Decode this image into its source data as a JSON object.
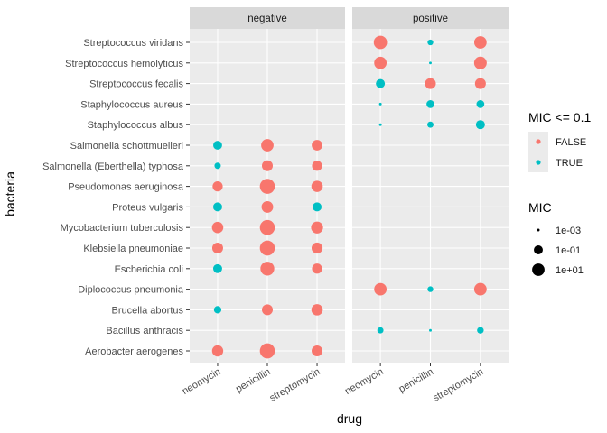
{
  "chart_data": {
    "type": "scatter",
    "xlabel": "drug",
    "ylabel": "bacteria",
    "facets": [
      "negative",
      "positive"
    ],
    "drugs": [
      "neomycin",
      "penicillin",
      "streptomycin"
    ],
    "bacteria": [
      "Aerobacter aerogenes",
      "Bacillus anthracis",
      "Brucella abortus",
      "Diplococcus pneumonia",
      "Escherichia coli",
      "Klebsiella pneumoniae",
      "Mycobacterium tuberculosis",
      "Proteus vulgaris",
      "Pseudomonas aeruginosa",
      "Salmonella (Eberthella) typhosa",
      "Salmonella schottmuelleri",
      "Staphylococcus albus",
      "Staphylococcus aureus",
      "Streptococcus fecalis",
      "Streptococcus hemolyticus",
      "Streptococcus viridans"
    ],
    "points": [
      {
        "bacteria": "Aerobacter aerogenes",
        "gram": "negative",
        "drug": "neomycin",
        "mic": 1.6,
        "mic_le_0_1": false
      },
      {
        "bacteria": "Aerobacter aerogenes",
        "gram": "negative",
        "drug": "penicillin",
        "mic": 870,
        "mic_le_0_1": false
      },
      {
        "bacteria": "Aerobacter aerogenes",
        "gram": "negative",
        "drug": "streptomycin",
        "mic": 1,
        "mic_le_0_1": false
      },
      {
        "bacteria": "Brucella abortus",
        "gram": "negative",
        "drug": "neomycin",
        "mic": 0.02,
        "mic_le_0_1": true
      },
      {
        "bacteria": "Brucella abortus",
        "gram": "negative",
        "drug": "penicillin",
        "mic": 1,
        "mic_le_0_1": false
      },
      {
        "bacteria": "Brucella abortus",
        "gram": "negative",
        "drug": "streptomycin",
        "mic": 2,
        "mic_le_0_1": false
      },
      {
        "bacteria": "Escherichia coli",
        "gram": "negative",
        "drug": "neomycin",
        "mic": 0.1,
        "mic_le_0_1": true
      },
      {
        "bacteria": "Escherichia coli",
        "gram": "negative",
        "drug": "penicillin",
        "mic": 100,
        "mic_le_0_1": false
      },
      {
        "bacteria": "Escherichia coli",
        "gram": "negative",
        "drug": "streptomycin",
        "mic": 0.4,
        "mic_le_0_1": false
      },
      {
        "bacteria": "Klebsiella pneumoniae",
        "gram": "negative",
        "drug": "neomycin",
        "mic": 1,
        "mic_le_0_1": false
      },
      {
        "bacteria": "Klebsiella pneumoniae",
        "gram": "negative",
        "drug": "penicillin",
        "mic": 850,
        "mic_le_0_1": false
      },
      {
        "bacteria": "Klebsiella pneumoniae",
        "gram": "negative",
        "drug": "streptomycin",
        "mic": 1.2,
        "mic_le_0_1": false
      },
      {
        "bacteria": "Mycobacterium tuberculosis",
        "gram": "negative",
        "drug": "neomycin",
        "mic": 2,
        "mic_le_0_1": false
      },
      {
        "bacteria": "Mycobacterium tuberculosis",
        "gram": "negative",
        "drug": "penicillin",
        "mic": 800,
        "mic_le_0_1": false
      },
      {
        "bacteria": "Mycobacterium tuberculosis",
        "gram": "negative",
        "drug": "streptomycin",
        "mic": 5,
        "mic_le_0_1": false
      },
      {
        "bacteria": "Proteus vulgaris",
        "gram": "negative",
        "drug": "neomycin",
        "mic": 0.1,
        "mic_le_0_1": true
      },
      {
        "bacteria": "Proteus vulgaris",
        "gram": "negative",
        "drug": "penicillin",
        "mic": 3,
        "mic_le_0_1": false
      },
      {
        "bacteria": "Proteus vulgaris",
        "gram": "negative",
        "drug": "streptomycin",
        "mic": 0.1,
        "mic_le_0_1": true
      },
      {
        "bacteria": "Pseudomonas aeruginosa",
        "gram": "negative",
        "drug": "neomycin",
        "mic": 0.4,
        "mic_le_0_1": false
      },
      {
        "bacteria": "Pseudomonas aeruginosa",
        "gram": "negative",
        "drug": "penicillin",
        "mic": 850,
        "mic_le_0_1": false
      },
      {
        "bacteria": "Pseudomonas aeruginosa",
        "gram": "negative",
        "drug": "streptomycin",
        "mic": 2,
        "mic_le_0_1": false
      },
      {
        "bacteria": "Salmonella (Eberthella) typhosa",
        "gram": "negative",
        "drug": "neomycin",
        "mic": 0.008,
        "mic_le_0_1": true
      },
      {
        "bacteria": "Salmonella (Eberthella) typhosa",
        "gram": "negative",
        "drug": "penicillin",
        "mic": 1,
        "mic_le_0_1": false
      },
      {
        "bacteria": "Salmonella (Eberthella) typhosa",
        "gram": "negative",
        "drug": "streptomycin",
        "mic": 0.4,
        "mic_le_0_1": false
      },
      {
        "bacteria": "Salmonella schottmuelleri",
        "gram": "negative",
        "drug": "neomycin",
        "mic": 0.09,
        "mic_le_0_1": true
      },
      {
        "bacteria": "Salmonella schottmuelleri",
        "gram": "negative",
        "drug": "penicillin",
        "mic": 10,
        "mic_le_0_1": false
      },
      {
        "bacteria": "Salmonella schottmuelleri",
        "gram": "negative",
        "drug": "streptomycin",
        "mic": 0.8,
        "mic_le_0_1": false
      },
      {
        "bacteria": "Bacillus anthracis",
        "gram": "positive",
        "drug": "neomycin",
        "mic": 0.007,
        "mic_le_0_1": true
      },
      {
        "bacteria": "Bacillus anthracis",
        "gram": "positive",
        "drug": "penicillin",
        "mic": 0.001,
        "mic_le_0_1": true
      },
      {
        "bacteria": "Bacillus anthracis",
        "gram": "positive",
        "drug": "streptomycin",
        "mic": 0.01,
        "mic_le_0_1": true
      },
      {
        "bacteria": "Diplococcus pneumonia",
        "gram": "positive",
        "drug": "neomycin",
        "mic": 10,
        "mic_le_0_1": false
      },
      {
        "bacteria": "Diplococcus pneumonia",
        "gram": "positive",
        "drug": "penicillin",
        "mic": 0.005,
        "mic_le_0_1": true
      },
      {
        "bacteria": "Diplococcus pneumonia",
        "gram": "positive",
        "drug": "streptomycin",
        "mic": 11,
        "mic_le_0_1": false
      },
      {
        "bacteria": "Staphylococcus albus",
        "gram": "positive",
        "drug": "neomycin",
        "mic": 0.001,
        "mic_le_0_1": true
      },
      {
        "bacteria": "Staphylococcus albus",
        "gram": "positive",
        "drug": "penicillin",
        "mic": 0.007,
        "mic_le_0_1": true
      },
      {
        "bacteria": "Staphylococcus albus",
        "gram": "positive",
        "drug": "streptomycin",
        "mic": 0.1,
        "mic_le_0_1": true
      },
      {
        "bacteria": "Staphylococcus aureus",
        "gram": "positive",
        "drug": "neomycin",
        "mic": 0.001,
        "mic_le_0_1": true
      },
      {
        "bacteria": "Staphylococcus aureus",
        "gram": "positive",
        "drug": "penicillin",
        "mic": 0.03,
        "mic_le_0_1": true
      },
      {
        "bacteria": "Staphylococcus aureus",
        "gram": "positive",
        "drug": "streptomycin",
        "mic": 0.03,
        "mic_le_0_1": true
      },
      {
        "bacteria": "Streptococcus fecalis",
        "gram": "positive",
        "drug": "neomycin",
        "mic": 0.1,
        "mic_le_0_1": true
      },
      {
        "bacteria": "Streptococcus fecalis",
        "gram": "positive",
        "drug": "penicillin",
        "mic": 1,
        "mic_le_0_1": false
      },
      {
        "bacteria": "Streptococcus fecalis",
        "gram": "positive",
        "drug": "streptomycin",
        "mic": 1,
        "mic_le_0_1": false
      },
      {
        "bacteria": "Streptococcus hemolyticus",
        "gram": "positive",
        "drug": "neomycin",
        "mic": 10,
        "mic_le_0_1": false
      },
      {
        "bacteria": "Streptococcus hemolyticus",
        "gram": "positive",
        "drug": "penicillin",
        "mic": 0.001,
        "mic_le_0_1": true
      },
      {
        "bacteria": "Streptococcus hemolyticus",
        "gram": "positive",
        "drug": "streptomycin",
        "mic": 14,
        "mic_le_0_1": false
      },
      {
        "bacteria": "Streptococcus viridans",
        "gram": "positive",
        "drug": "neomycin",
        "mic": 40,
        "mic_le_0_1": false
      },
      {
        "bacteria": "Streptococcus viridans",
        "gram": "positive",
        "drug": "penicillin",
        "mic": 0.005,
        "mic_le_0_1": true
      },
      {
        "bacteria": "Streptococcus viridans",
        "gram": "positive",
        "drug": "streptomycin",
        "mic": 10,
        "mic_le_0_1": false
      }
    ],
    "legends": {
      "color": {
        "title": "MIC <= 0.1",
        "entries": [
          {
            "label": "FALSE",
            "value": false,
            "color": "#F8766D"
          },
          {
            "label": "TRUE",
            "value": true,
            "color": "#00BFC4"
          }
        ]
      },
      "size": {
        "title": "MIC",
        "entries": [
          {
            "label": "1e-03",
            "value": 0.001
          },
          {
            "label": "1e-01",
            "value": 0.1
          },
          {
            "label": "1e+01",
            "value": 10
          }
        ],
        "scale": "log10"
      }
    },
    "grid": true,
    "legend_position": "right"
  }
}
